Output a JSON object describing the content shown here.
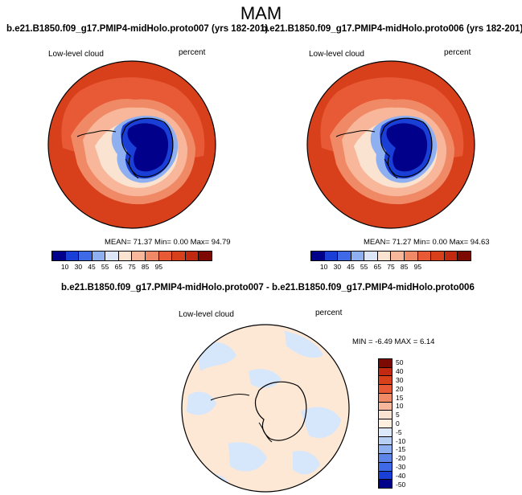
{
  "season": "MAM",
  "panel_left": {
    "title": "b.e21.B1850.f09_g17.PMIP4-midHolo.proto007 (yrs 182-201)",
    "variable": "Low-level cloud",
    "units": "percent",
    "stats": "MEAN= 71.37  Min=   0.00  Max= 94.79"
  },
  "panel_right": {
    "title": "b.e21.B1850.f09_g17.PMIP4-midHolo.proto006 (yrs 182-201)",
    "variable": "Low-level cloud",
    "units": "percent",
    "stats": "MEAN= 71.27  Min=   0.00  Max= 94.63"
  },
  "colorbar_main": {
    "labels": [
      "10",
      "30",
      "45",
      "55",
      "65",
      "75",
      "85",
      "95"
    ],
    "colors": [
      "#00008b",
      "#1a3fd6",
      "#3e6ae8",
      "#8fb0f0",
      "#dce6f8",
      "#fbe3d2",
      "#f8b79a",
      "#f08a66",
      "#e85a35",
      "#d8401c",
      "#c12a10",
      "#7c0a02"
    ]
  },
  "panel_diff": {
    "title": "b.e21.B1850.f09_g17.PMIP4-midHolo.proto007 - b.e21.B1850.f09_g17.PMIP4-midHolo.proto006",
    "variable": "Low-level cloud",
    "units": "percent",
    "stats": "MIN = -6.49 MAX =  6.14"
  },
  "colorbar_diff": {
    "labels": [
      "50",
      "40",
      "30",
      "20",
      "15",
      "10",
      "5",
      "0",
      "-5",
      "-10",
      "-15",
      "-20",
      "-30",
      "-40",
      "-50"
    ],
    "colors": [
      "#7c0a02",
      "#c12a10",
      "#d8401c",
      "#e85a35",
      "#f08a66",
      "#f8b79a",
      "#fbe3d2",
      "#fdeee0",
      "#dde9fa",
      "#b8cff4",
      "#8fb0f0",
      "#5c85ea",
      "#3e6ae8",
      "#1a3fd6",
      "#00008b"
    ]
  },
  "colors": {
    "ocean_high": "#d8401c",
    "ocean_mid": "#e85a35",
    "coast_band": "#f8b79a",
    "interior_low": "#00008b",
    "diff_positive": "#fde8d6",
    "diff_negative": "#d6e6fb"
  }
}
